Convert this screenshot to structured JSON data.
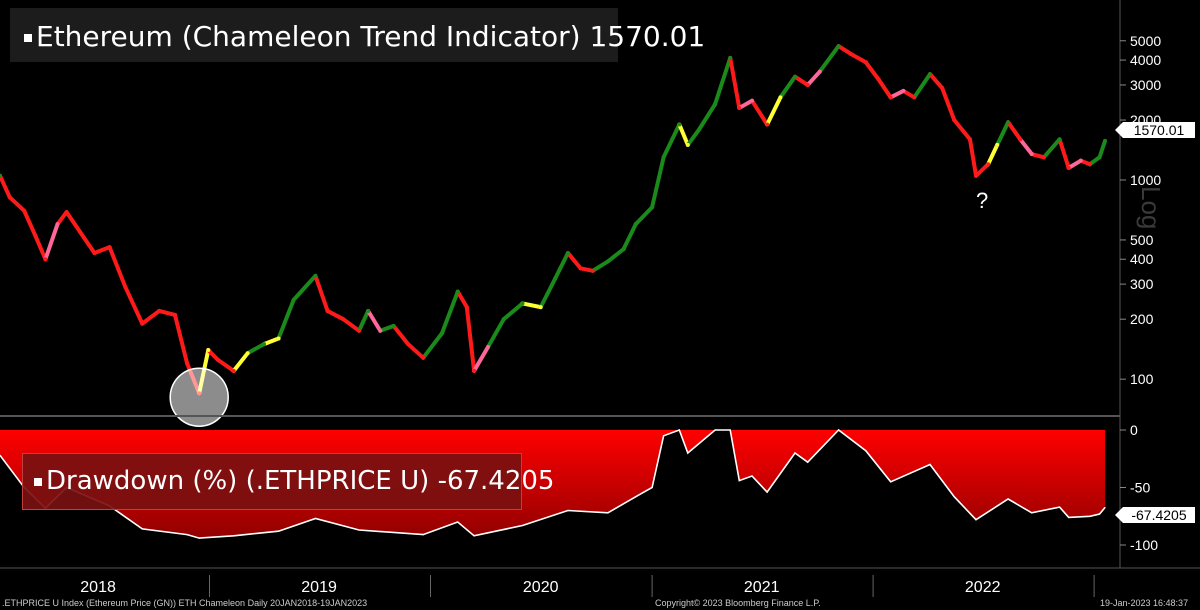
{
  "title": {
    "label": "Ethereum (Chameleon Trend Indicator)",
    "value": "1570.01"
  },
  "drawdown_panel": {
    "label": "Drawdown (%) (.ETHPRICE U)",
    "value": "-67.4205"
  },
  "price_tag": "1570.01",
  "drawdown_tag": "-67.4205",
  "axis_scale_label": "Log",
  "annotation_question": "?",
  "footer": {
    "left": ".ETHPRICE U Index (Ethereum Price (GN)) ETH Chameleon  Daily 20JAN2018-19JAN2023",
    "center": "Copyright© 2023 Bloomberg Finance L.P.",
    "right": "19-Jan-2023 16:48:37"
  },
  "colors": {
    "background": "#000000",
    "bull": "#1a8a1a",
    "bear": "#ff1a1a",
    "caution_up": "#ffff33",
    "caution_down": "#ff6699",
    "drawdown_fill": "#ff0000",
    "drawdown_line": "#ffffff"
  },
  "chart_data": [
    {
      "type": "line",
      "title": "Ethereum (Chameleon Trend Indicator)",
      "ylabel": "Log",
      "log_scale": true,
      "ylim": [
        70,
        6000
      ],
      "y_ticks": [
        100,
        200,
        300,
        400,
        500,
        1000,
        2000,
        3000,
        4000,
        5000
      ],
      "x_ticks": [
        "2018",
        "2019",
        "2020",
        "2021",
        "2022"
      ],
      "series": [
        {
          "name": "ETH Chameleon",
          "points": [
            {
              "x": "2018-01-20",
              "y": 1050,
              "c": "green"
            },
            {
              "x": "2018-02-05",
              "y": 820,
              "c": "red"
            },
            {
              "x": "2018-03-01",
              "y": 700,
              "c": "red"
            },
            {
              "x": "2018-03-20",
              "y": 520,
              "c": "red"
            },
            {
              "x": "2018-04-05",
              "y": 400,
              "c": "red"
            },
            {
              "x": "2018-04-25",
              "y": 600,
              "c": "pink"
            },
            {
              "x": "2018-05-10",
              "y": 690,
              "c": "red"
            },
            {
              "x": "2018-06-01",
              "y": 550,
              "c": "red"
            },
            {
              "x": "2018-06-25",
              "y": 430,
              "c": "red"
            },
            {
              "x": "2018-07-20",
              "y": 460,
              "c": "red"
            },
            {
              "x": "2018-08-15",
              "y": 290,
              "c": "red"
            },
            {
              "x": "2018-09-12",
              "y": 190,
              "c": "red"
            },
            {
              "x": "2018-10-10",
              "y": 220,
              "c": "red"
            },
            {
              "x": "2018-11-05",
              "y": 210,
              "c": "red"
            },
            {
              "x": "2018-11-25",
              "y": 120,
              "c": "red"
            },
            {
              "x": "2018-12-15",
              "y": 85,
              "c": "red"
            },
            {
              "x": "2018-12-30",
              "y": 140,
              "c": "yellow"
            },
            {
              "x": "2019-01-15",
              "y": 125,
              "c": "red"
            },
            {
              "x": "2019-02-10",
              "y": 110,
              "c": "red"
            },
            {
              "x": "2019-03-05",
              "y": 135,
              "c": "yellow"
            },
            {
              "x": "2019-04-01",
              "y": 150,
              "c": "green"
            },
            {
              "x": "2019-04-25",
              "y": 160,
              "c": "yellow"
            },
            {
              "x": "2019-05-20",
              "y": 250,
              "c": "green"
            },
            {
              "x": "2019-06-25",
              "y": 330,
              "c": "green"
            },
            {
              "x": "2019-07-15",
              "y": 220,
              "c": "red"
            },
            {
              "x": "2019-08-10",
              "y": 200,
              "c": "red"
            },
            {
              "x": "2019-09-05",
              "y": 175,
              "c": "red"
            },
            {
              "x": "2019-09-20",
              "y": 220,
              "c": "green"
            },
            {
              "x": "2019-10-10",
              "y": 175,
              "c": "pink"
            },
            {
              "x": "2019-11-01",
              "y": 185,
              "c": "green"
            },
            {
              "x": "2019-11-25",
              "y": 150,
              "c": "red"
            },
            {
              "x": "2019-12-20",
              "y": 128,
              "c": "red"
            },
            {
              "x": "2020-01-20",
              "y": 170,
              "c": "green"
            },
            {
              "x": "2020-02-15",
              "y": 275,
              "c": "green"
            },
            {
              "x": "2020-03-01",
              "y": 230,
              "c": "red"
            },
            {
              "x": "2020-03-13",
              "y": 110,
              "c": "red"
            },
            {
              "x": "2020-04-05",
              "y": 145,
              "c": "pink"
            },
            {
              "x": "2020-05-01",
              "y": 200,
              "c": "green"
            },
            {
              "x": "2020-06-01",
              "y": 240,
              "c": "green"
            },
            {
              "x": "2020-07-01",
              "y": 230,
              "c": "yellow"
            },
            {
              "x": "2020-07-25",
              "y": 320,
              "c": "green"
            },
            {
              "x": "2020-08-15",
              "y": 430,
              "c": "green"
            },
            {
              "x": "2020-09-05",
              "y": 360,
              "c": "red"
            },
            {
              "x": "2020-09-25",
              "y": 350,
              "c": "red"
            },
            {
              "x": "2020-10-20",
              "y": 390,
              "c": "green"
            },
            {
              "x": "2020-11-15",
              "y": 450,
              "c": "green"
            },
            {
              "x": "2020-12-05",
              "y": 600,
              "c": "green"
            },
            {
              "x": "2021-01-01",
              "y": 730,
              "c": "green"
            },
            {
              "x": "2021-01-20",
              "y": 1300,
              "c": "green"
            },
            {
              "x": "2021-02-15",
              "y": 1900,
              "c": "green"
            },
            {
              "x": "2021-03-01",
              "y": 1500,
              "c": "yellow"
            },
            {
              "x": "2021-03-20",
              "y": 1800,
              "c": "green"
            },
            {
              "x": "2021-04-15",
              "y": 2400,
              "c": "green"
            },
            {
              "x": "2021-05-10",
              "y": 4100,
              "c": "green"
            },
            {
              "x": "2021-05-25",
              "y": 2300,
              "c": "red"
            },
            {
              "x": "2021-06-15",
              "y": 2500,
              "c": "pink"
            },
            {
              "x": "2021-07-10",
              "y": 1900,
              "c": "red"
            },
            {
              "x": "2021-08-01",
              "y": 2600,
              "c": "yellow"
            },
            {
              "x": "2021-08-25",
              "y": 3300,
              "c": "green"
            },
            {
              "x": "2021-09-15",
              "y": 3000,
              "c": "red"
            },
            {
              "x": "2021-10-05",
              "y": 3500,
              "c": "pink"
            },
            {
              "x": "2021-11-05",
              "y": 4700,
              "c": "green"
            },
            {
              "x": "2021-11-25",
              "y": 4300,
              "c": "red"
            },
            {
              "x": "2021-12-20",
              "y": 3900,
              "c": "red"
            },
            {
              "x": "2022-01-10",
              "y": 3200,
              "c": "red"
            },
            {
              "x": "2022-01-30",
              "y": 2600,
              "c": "red"
            },
            {
              "x": "2022-02-20",
              "y": 2800,
              "c": "pink"
            },
            {
              "x": "2022-03-10",
              "y": 2600,
              "c": "red"
            },
            {
              "x": "2022-04-05",
              "y": 3400,
              "c": "green"
            },
            {
              "x": "2022-04-25",
              "y": 2900,
              "c": "red"
            },
            {
              "x": "2022-05-15",
              "y": 2000,
              "c": "red"
            },
            {
              "x": "2022-06-10",
              "y": 1600,
              "c": "red"
            },
            {
              "x": "2022-06-20",
              "y": 1050,
              "c": "red"
            },
            {
              "x": "2022-07-10",
              "y": 1200,
              "c": "red"
            },
            {
              "x": "2022-07-25",
              "y": 1500,
              "c": "yellow"
            },
            {
              "x": "2022-08-12",
              "y": 1950,
              "c": "green"
            },
            {
              "x": "2022-09-01",
              "y": 1600,
              "c": "red"
            },
            {
              "x": "2022-09-20",
              "y": 1350,
              "c": "pink"
            },
            {
              "x": "2022-10-10",
              "y": 1300,
              "c": "red"
            },
            {
              "x": "2022-11-05",
              "y": 1600,
              "c": "green"
            },
            {
              "x": "2022-11-20",
              "y": 1150,
              "c": "red"
            },
            {
              "x": "2022-12-10",
              "y": 1250,
              "c": "pink"
            },
            {
              "x": "2022-12-25",
              "y": 1200,
              "c": "red"
            },
            {
              "x": "2023-01-10",
              "y": 1300,
              "c": "green"
            },
            {
              "x": "2023-01-19",
              "y": 1570.01,
              "c": "green"
            }
          ]
        }
      ],
      "legend": "none"
    },
    {
      "type": "area",
      "title": "Drawdown (%) (.ETHPRICE U)",
      "ylim": [
        -100,
        0
      ],
      "y_ticks": [
        0,
        -50,
        -100
      ],
      "x_ticks": [
        "2018",
        "2019",
        "2020",
        "2021",
        "2022"
      ],
      "series": [
        {
          "name": "Drawdown (%)",
          "points": [
            {
              "x": "2018-01-20",
              "y": -22
            },
            {
              "x": "2018-03-01",
              "y": -50
            },
            {
              "x": "2018-04-05",
              "y": -68
            },
            {
              "x": "2018-05-10",
              "y": -50
            },
            {
              "x": "2018-07-20",
              "y": -66
            },
            {
              "x": "2018-09-12",
              "y": -86
            },
            {
              "x": "2018-11-25",
              "y": -91
            },
            {
              "x": "2018-12-15",
              "y": -94
            },
            {
              "x": "2019-02-10",
              "y": -92
            },
            {
              "x": "2019-04-25",
              "y": -88
            },
            {
              "x": "2019-06-25",
              "y": -77
            },
            {
              "x": "2019-09-05",
              "y": -87
            },
            {
              "x": "2019-12-20",
              "y": -91
            },
            {
              "x": "2020-02-15",
              "y": -80
            },
            {
              "x": "2020-03-13",
              "y": -92
            },
            {
              "x": "2020-06-01",
              "y": -83
            },
            {
              "x": "2020-08-15",
              "y": -70
            },
            {
              "x": "2020-10-20",
              "y": -72
            },
            {
              "x": "2020-12-05",
              "y": -58
            },
            {
              "x": "2021-01-01",
              "y": -50
            },
            {
              "x": "2021-01-20",
              "y": -5
            },
            {
              "x": "2021-02-15",
              "y": 0
            },
            {
              "x": "2021-03-01",
              "y": -20
            },
            {
              "x": "2021-04-15",
              "y": 0
            },
            {
              "x": "2021-05-10",
              "y": 0
            },
            {
              "x": "2021-05-25",
              "y": -44
            },
            {
              "x": "2021-06-15",
              "y": -40
            },
            {
              "x": "2021-07-10",
              "y": -54
            },
            {
              "x": "2021-08-25",
              "y": -20
            },
            {
              "x": "2021-09-15",
              "y": -28
            },
            {
              "x": "2021-11-05",
              "y": 0
            },
            {
              "x": "2021-12-20",
              "y": -18
            },
            {
              "x": "2022-01-30",
              "y": -45
            },
            {
              "x": "2022-04-05",
              "y": -30
            },
            {
              "x": "2022-05-15",
              "y": -58
            },
            {
              "x": "2022-06-20",
              "y": -78
            },
            {
              "x": "2022-08-12",
              "y": -60
            },
            {
              "x": "2022-09-20",
              "y": -72
            },
            {
              "x": "2022-11-05",
              "y": -67
            },
            {
              "x": "2022-11-20",
              "y": -76
            },
            {
              "x": "2022-12-25",
              "y": -75
            },
            {
              "x": "2023-01-10",
              "y": -73
            },
            {
              "x": "2023-01-19",
              "y": -67.4205
            }
          ]
        }
      ],
      "legend": "none"
    }
  ]
}
